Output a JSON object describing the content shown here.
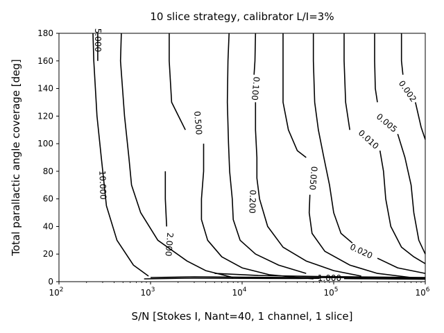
{
  "chart_data": {
    "type": "contour",
    "title": "10 slice strategy, calibrator L/I=3%",
    "xlabel": "S/N [Stokes I, Nant=40, 1 channel, 1 slice]",
    "ylabel": "Total parallactic angle coverage [deg]",
    "xscale": "log",
    "xlim": [
      100,
      1000000
    ],
    "ylim": [
      0,
      180
    ],
    "xticks": [
      {
        "value": 100,
        "base": "10",
        "exp": "2"
      },
      {
        "value": 1000,
        "base": "10",
        "exp": "3"
      },
      {
        "value": 10000,
        "base": "10",
        "exp": "4"
      },
      {
        "value": 100000,
        "base": "10",
        "exp": "5"
      },
      {
        "value": 1000000,
        "base": "10",
        "exp": "6"
      }
    ],
    "yticks": [
      "0",
      "20",
      "40",
      "60",
      "80",
      "100",
      "120",
      "140",
      "160",
      "180"
    ],
    "grid": false,
    "contours": [
      {
        "label": "10.000",
        "label_at": [
          300,
          70
        ],
        "label_angle": 88,
        "points": [
          [
            235,
            180
          ],
          [
            240,
            160
          ],
          [
            260,
            120
          ],
          [
            290,
            90
          ],
          [
            330,
            55
          ],
          [
            430,
            30
          ],
          [
            650,
            12
          ],
          [
            950,
            4
          ]
        ]
      },
      {
        "label": "5.000",
        "label_at": [
          265,
          175
        ],
        "label_angle": 90,
        "points": [
          [
            265,
            180
          ],
          [
            265,
            160
          ]
        ]
      },
      {
        "label": "2.000",
        "label_at": [
          1600,
          27
        ],
        "label_angle": 95,
        "points": [
          [
            480,
            180
          ],
          [
            470,
            160
          ],
          [
            520,
            120
          ],
          [
            580,
            90
          ],
          [
            620,
            70
          ],
          [
            780,
            50
          ],
          [
            1200,
            30
          ],
          [
            2500,
            15
          ],
          [
            4000,
            8
          ],
          [
            8000,
            3
          ]
        ]
      },
      {
        "label": "",
        "label_at": null,
        "label_angle": 0,
        "points": [
          [
            1500,
            40
          ],
          [
            1450,
            60
          ],
          [
            1450,
            80
          ]
        ]
      },
      {
        "label": "0.500",
        "label_at": [
          3300,
          115
        ],
        "label_angle": 85,
        "points": [
          [
            1600,
            180
          ],
          [
            1600,
            160
          ],
          [
            1700,
            130
          ],
          [
            2400,
            110
          ]
        ]
      },
      {
        "label": "",
        "label_at": null,
        "label_angle": 0,
        "points": [
          [
            3800,
            100
          ],
          [
            3800,
            80
          ],
          [
            3600,
            60
          ],
          [
            3600,
            45
          ],
          [
            4200,
            30
          ],
          [
            6000,
            18
          ],
          [
            10000,
            10
          ],
          [
            20000,
            5
          ],
          [
            60000,
            2
          ]
        ]
      },
      {
        "label": "0.200",
        "label_at": [
          13000,
          58
        ],
        "label_angle": 92,
        "points": [
          [
            7200,
            180
          ],
          [
            7000,
            160
          ],
          [
            6900,
            130
          ],
          [
            7100,
            100
          ],
          [
            7300,
            80
          ],
          [
            7800,
            60
          ],
          [
            8000,
            45
          ],
          [
            9500,
            30
          ],
          [
            14000,
            20
          ],
          [
            25000,
            12
          ],
          [
            50000,
            6
          ]
        ]
      },
      {
        "label": "0.100",
        "label_at": [
          14000,
          140
        ],
        "label_angle": 95,
        "points": [
          [
            14000,
            180
          ],
          [
            13800,
            160
          ],
          [
            13500,
            150
          ]
        ]
      },
      {
        "label": "",
        "label_at": null,
        "label_angle": 0,
        "points": [
          [
            14000,
            130
          ],
          [
            14000,
            110
          ],
          [
            14500,
            90
          ],
          [
            14500,
            75
          ],
          [
            15500,
            60
          ],
          [
            19000,
            40
          ],
          [
            28000,
            25
          ],
          [
            50000,
            15
          ],
          [
            100000,
            8
          ],
          [
            200000,
            4
          ]
        ]
      },
      {
        "label": "0.050",
        "label_at": [
          60000,
          75
        ],
        "label_angle": 95,
        "points": [
          [
            28000,
            180
          ],
          [
            28000,
            160
          ],
          [
            28000,
            130
          ],
          [
            32000,
            110
          ],
          [
            40000,
            95
          ],
          [
            50000,
            90
          ]
        ]
      },
      {
        "label": "",
        "label_at": null,
        "label_angle": 0,
        "points": [
          [
            55000,
            63
          ],
          [
            54000,
            50
          ],
          [
            58000,
            35
          ],
          [
            80000,
            22
          ],
          [
            150000,
            12
          ],
          [
            300000,
            6
          ],
          [
            700000,
            3
          ]
        ]
      },
      {
        "label": "0.020",
        "label_at": [
          200000,
          22
        ],
        "label_angle": 25,
        "points": [
          [
            60000,
            180
          ],
          [
            60000,
            160
          ],
          [
            62000,
            130
          ],
          [
            68000,
            110
          ],
          [
            78000,
            90
          ],
          [
            90000,
            70
          ],
          [
            100000,
            50
          ],
          [
            120000,
            35
          ],
          [
            160000,
            28
          ]
        ]
      },
      {
        "label": "",
        "label_at": null,
        "label_angle": 0,
        "points": [
          [
            300000,
            17
          ],
          [
            500000,
            10
          ],
          [
            1000000,
            6
          ]
        ]
      },
      {
        "label": "0.010",
        "label_at": [
          240000,
          103
        ],
        "label_angle": 42,
        "points": [
          [
            130000,
            180
          ],
          [
            130000,
            160
          ],
          [
            135000,
            130
          ],
          [
            150000,
            110
          ]
        ]
      },
      {
        "label": "",
        "label_at": null,
        "label_angle": 0,
        "points": [
          [
            320000,
            95
          ],
          [
            350000,
            80
          ],
          [
            370000,
            60
          ],
          [
            420000,
            40
          ],
          [
            550000,
            25
          ],
          [
            750000,
            18
          ],
          [
            1000000,
            13
          ]
        ]
      },
      {
        "label": "0.005",
        "label_at": [
          380000,
          115
        ],
        "label_angle": 40,
        "points": [
          [
            280000,
            180
          ],
          [
            280000,
            160
          ],
          [
            285000,
            140
          ],
          [
            300000,
            130
          ]
        ]
      },
      {
        "label": "",
        "label_at": null,
        "label_angle": 0,
        "points": [
          [
            500000,
            107
          ],
          [
            600000,
            90
          ],
          [
            700000,
            70
          ],
          [
            750000,
            50
          ],
          [
            850000,
            30
          ],
          [
            1000000,
            20
          ]
        ]
      },
      {
        "label": "0.002",
        "label_at": [
          640000,
          138
        ],
        "label_angle": 55,
        "points": [
          [
            550000,
            180
          ],
          [
            550000,
            160
          ],
          [
            570000,
            150
          ]
        ]
      },
      {
        "label": "",
        "label_at": null,
        "label_angle": 0,
        "points": [
          [
            780000,
            130
          ],
          [
            900000,
            112
          ],
          [
            1000000,
            103
          ]
        ]
      },
      {
        "label": "1.000",
        "label_at": [
          90000,
          2.5
        ],
        "label_angle": 0,
        "points": [
          [
            850,
            2
          ],
          [
            1500,
            2.3
          ],
          [
            3000,
            2.5
          ],
          [
            10000,
            2.4
          ],
          [
            40000,
            2.3
          ],
          [
            70000,
            2.4
          ]
        ]
      },
      {
        "label": "",
        "label_at": null,
        "label_angle": 0,
        "points": [
          [
            130000,
            2.2
          ],
          [
            300000,
            2.0
          ],
          [
            1000000,
            1.8
          ]
        ]
      },
      {
        "label": "",
        "label_at": null,
        "label_angle": 0,
        "points": [
          [
            1000,
            3
          ],
          [
            3000,
            3.5
          ],
          [
            10000,
            3.2
          ],
          [
            50000,
            3
          ],
          [
            200000,
            2.8
          ],
          [
            1000000,
            2.6
          ]
        ]
      },
      {
        "label": "",
        "label_at": null,
        "label_angle": 0,
        "points": [
          [
            5000,
            6
          ],
          [
            15000,
            4.5
          ],
          [
            60000,
            3.8
          ],
          [
            300000,
            3.3
          ],
          [
            1000000,
            3.0
          ]
        ]
      }
    ]
  }
}
